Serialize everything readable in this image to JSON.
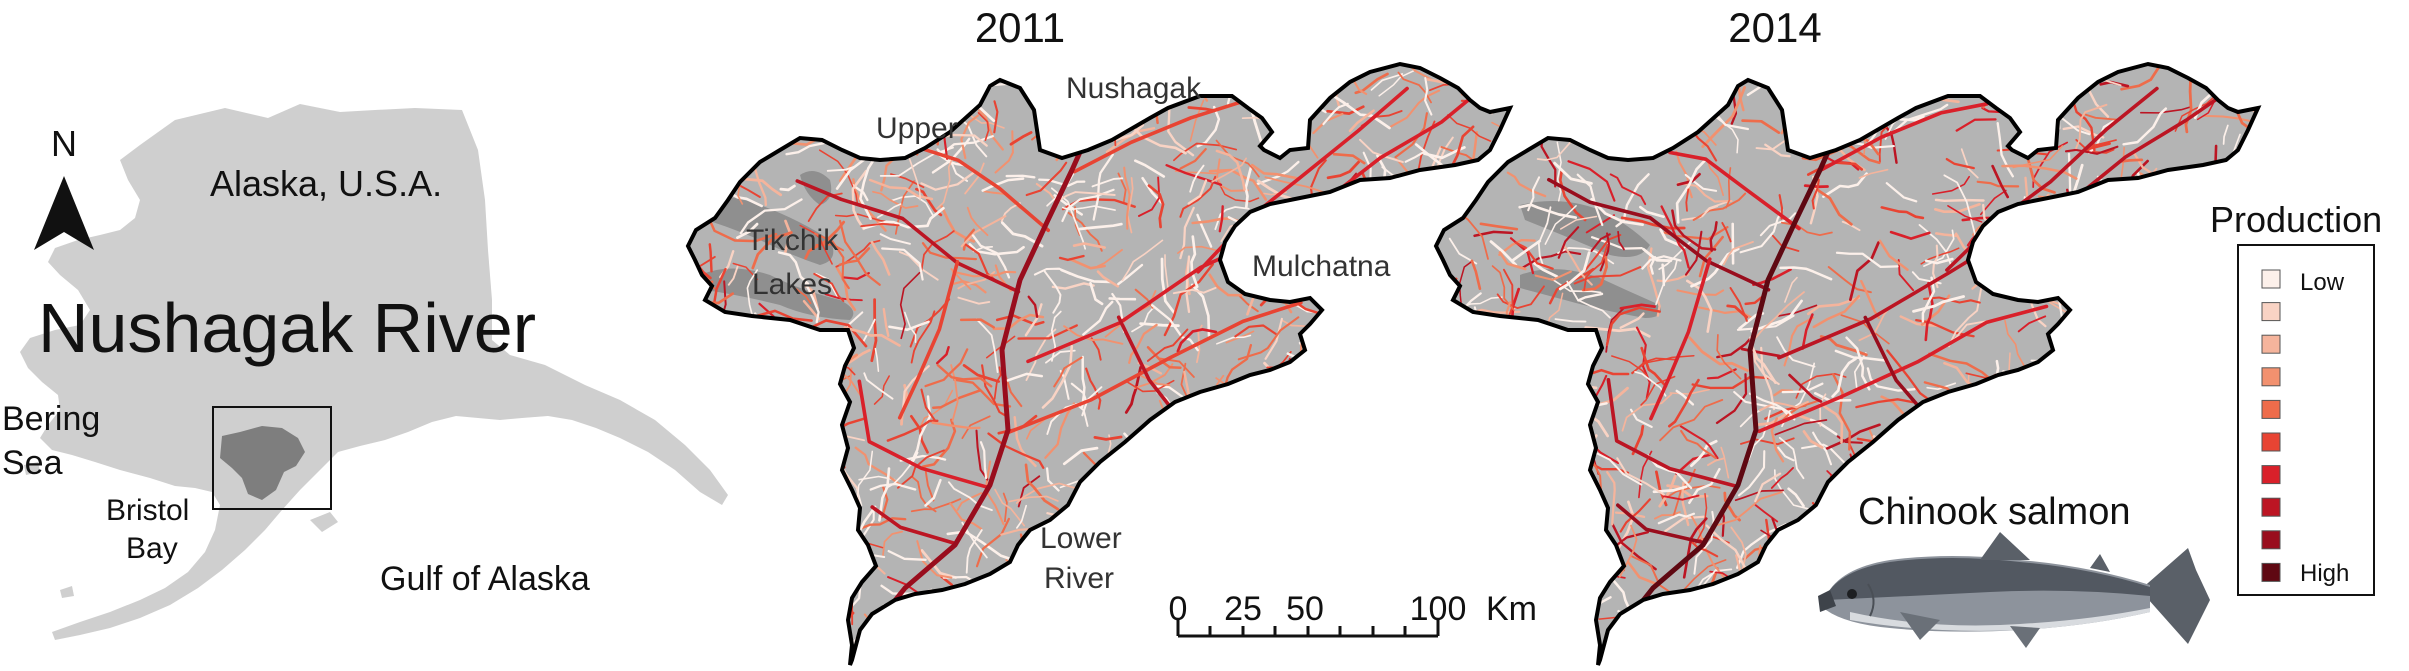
{
  "inset": {
    "north_label": "N",
    "region_label": "Alaska, U.S.A.",
    "title": "Nushagak River",
    "bering_line1": "Bering",
    "bering_line2": "Sea",
    "bristol_line1": "Bristol",
    "bristol_line2": "Bay",
    "gulf_label": "Gulf of Alaska"
  },
  "maps": [
    {
      "year": "2011",
      "labels": {
        "upper": "Upper",
        "nushagak": "Nushagak",
        "tikchik1": "Tikchik",
        "tikchik2": "Lakes",
        "mulchatna": "Mulchatna",
        "lower1": "Lower",
        "lower2": "River"
      }
    },
    {
      "year": "2014"
    }
  ],
  "scale_bar": {
    "ticks": [
      "0",
      "25",
      "50",
      "100"
    ],
    "unit": "Km"
  },
  "legend": {
    "title": "Production",
    "low_label": "Low",
    "high_label": "High",
    "colors": [
      "#fcf0ea",
      "#f9d3c4",
      "#f5b49c",
      "#f2916f",
      "#ee6c4b",
      "#e84433",
      "#d9202a",
      "#bc1523",
      "#990d1d",
      "#5f0812"
    ]
  },
  "species": {
    "label": "Chinook salmon"
  },
  "colors": {
    "land": "#cfcfcf",
    "watershed": "#b4b4b4",
    "boundary": "#000000",
    "stream_low": "#f2f2f2",
    "stream_high": "#8a0a14"
  }
}
